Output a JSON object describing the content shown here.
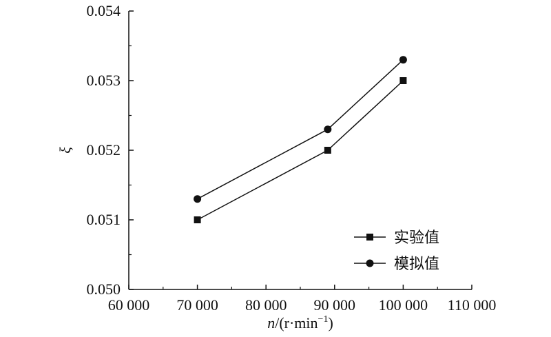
{
  "chart_data": {
    "type": "line",
    "x": [
      70000,
      89000,
      100000
    ],
    "series": [
      {
        "name": "实验值",
        "marker": "square",
        "values": [
          0.051,
          0.052,
          0.053
        ]
      },
      {
        "name": "模拟值",
        "marker": "circle",
        "values": [
          0.0513,
          0.0523,
          0.0533
        ]
      }
    ],
    "xlim": [
      60000,
      110000
    ],
    "ylim": [
      0.05,
      0.054
    ],
    "xticks": [
      "60 000",
      "70 000",
      "80 000",
      "90 000",
      "100 000",
      "110 000"
    ],
    "yticks": [
      "0.050",
      "0.051",
      "0.052",
      "0.053",
      "0.054"
    ],
    "xlabel_var": "n",
    "xlabel_unit": "/(r·min",
    "xlabel_sup": "−1",
    "xlabel_close": ")",
    "ylabel": "ξ",
    "legend_position": "bottom-right",
    "grid": false,
    "line_color": "#111111"
  }
}
